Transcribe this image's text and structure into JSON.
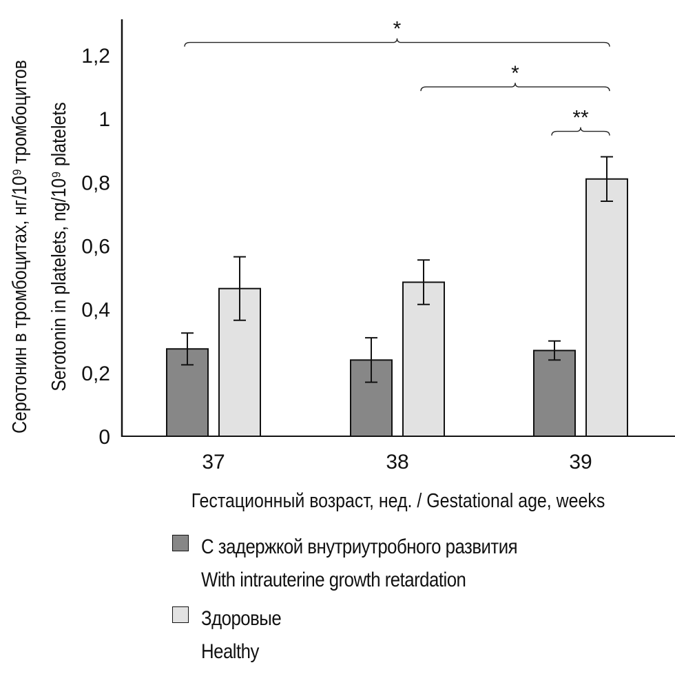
{
  "chart_data": {
    "type": "bar",
    "title": "",
    "xlabel": "Гестационный возраст, нед. / Gestational age, weeks",
    "ylabel": {
      "line1": "Серотонин в тромбоцитах, нг/10⁹ тромбоцитов",
      "line2": "Serotonin in platelets, ng/10⁹ platelets"
    },
    "categories": [
      "37",
      "38",
      "39"
    ],
    "ylim": [
      0,
      1.2
    ],
    "yticks": [
      0,
      0.2,
      0.4,
      0.6,
      0.8,
      1,
      1.2
    ],
    "ytick_labels": [
      "0",
      "0,2",
      "0,4",
      "0,6",
      "0,8",
      "1",
      "1,2"
    ],
    "grid": false,
    "legend_position": "bottom",
    "series": [
      {
        "name": "С задержкой внутриутробного развития / With intrauterine growth retardation",
        "label_ru": "С задержкой внутриутробного развития",
        "label_en": "With intrauterine growth retardation",
        "color": "#878787",
        "values": [
          0.275,
          0.24,
          0.27
        ],
        "errors": [
          0.05,
          0.07,
          0.03
        ]
      },
      {
        "name": "Здоровые / Healthy",
        "label_ru": "Здоровые",
        "label_en": "Healthy",
        "color": "#e2e2e2",
        "values": [
          0.465,
          0.485,
          0.81
        ],
        "errors": [
          0.1,
          0.07,
          0.07
        ]
      }
    ],
    "annotations": [
      {
        "label": "*",
        "from": {
          "category": "37",
          "series": 0
        },
        "to": {
          "category": "39",
          "series": 1
        },
        "level": 1.24
      },
      {
        "label": "*",
        "from": {
          "category": "38",
          "series": 1
        },
        "to": {
          "category": "39",
          "series": 1
        },
        "level": 1.1
      },
      {
        "label": "**",
        "from": {
          "category": "39",
          "series": 0
        },
        "to": {
          "category": "39",
          "series": 1
        },
        "level": 0.96
      }
    ]
  }
}
